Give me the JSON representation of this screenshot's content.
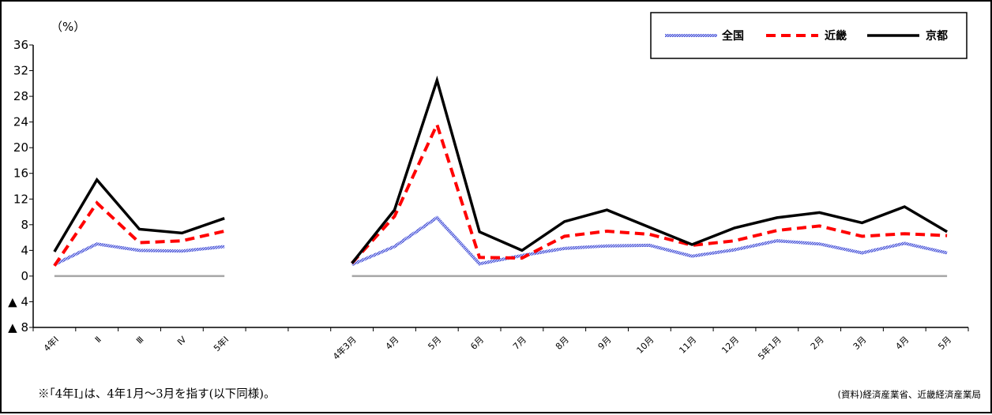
{
  "chart_data": {
    "type": "line",
    "ylabel": "（%）",
    "ylim": [
      -8,
      36
    ],
    "yticks": [
      {
        "value": 36,
        "label": "36"
      },
      {
        "value": 32,
        "label": "32"
      },
      {
        "value": 28,
        "label": "28"
      },
      {
        "value": 24,
        "label": "24"
      },
      {
        "value": 20,
        "label": "20"
      },
      {
        "value": 16,
        "label": "16"
      },
      {
        "value": 12,
        "label": "12"
      },
      {
        "value": 8,
        "label": "8"
      },
      {
        "value": 4,
        "label": "4"
      },
      {
        "value": 0,
        "label": "0"
      },
      {
        "value": -4,
        "label": "▲ 4"
      },
      {
        "value": -8,
        "label": "▲ 8"
      }
    ],
    "legend_position": "top-right",
    "categories": [
      "4年Ⅰ",
      "Ⅱ",
      "Ⅲ",
      "Ⅳ",
      "5年Ⅰ",
      "",
      "",
      "4年3月",
      "4月",
      "5月",
      "6月",
      "7月",
      "8月",
      "9月",
      "10月",
      "11月",
      "12月",
      "5年1月",
      "2月",
      "3月",
      "4月",
      "5月"
    ],
    "series": [
      {
        "name": "全国",
        "color": "#5b6bd6",
        "style": "hatched",
        "values": [
          1.8,
          5.0,
          4.0,
          3.9,
          4.6,
          null,
          null,
          1.8,
          4.6,
          9.1,
          1.9,
          3.2,
          4.3,
          4.7,
          4.8,
          3.1,
          4.1,
          5.5,
          5.0,
          3.6,
          5.1,
          3.6
        ]
      },
      {
        "name": "近畿",
        "color": "#ff0000",
        "style": "dashed",
        "values": [
          1.6,
          11.4,
          5.2,
          5.5,
          7.0,
          null,
          null,
          2.0,
          9.3,
          23.6,
          2.9,
          2.8,
          6.2,
          7.0,
          6.5,
          4.8,
          5.5,
          7.1,
          7.8,
          6.2,
          6.6,
          6.3
        ]
      },
      {
        "name": "京都",
        "color": "#000000",
        "style": "solid",
        "values": [
          3.8,
          15.0,
          7.3,
          6.7,
          9.0,
          null,
          null,
          2.0,
          10.3,
          30.5,
          6.9,
          4.0,
          8.5,
          10.3,
          7.6,
          4.9,
          7.5,
          9.1,
          9.9,
          8.3,
          10.8,
          6.9
        ]
      }
    ]
  },
  "footnote": "※｢4年Ⅰ｣は、4年1月～3月を指す(以下同様)。",
  "source": "(資料)経済産業省、近畿経済産業局"
}
